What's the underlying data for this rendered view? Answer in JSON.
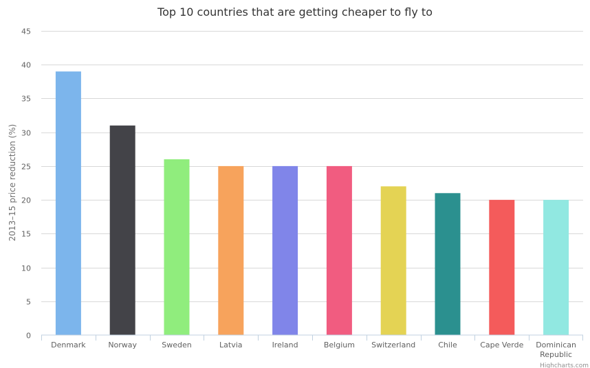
{
  "chart_data": {
    "type": "bar",
    "title": "Top 10 countries that are getting cheaper to fly to",
    "xlabel": "",
    "ylabel": "2013–15 price reduction (%)",
    "ylim": [
      0,
      45
    ],
    "yticks": [
      0,
      5,
      10,
      15,
      20,
      25,
      30,
      35,
      40,
      45
    ],
    "grid": true,
    "legend": "none",
    "categories": [
      "Denmark",
      "Norway",
      "Sweden",
      "Latvia",
      "Ireland",
      "Belgium",
      "Switzerland",
      "Chile",
      "Cape Verde",
      "Dominican Republic"
    ],
    "category_lines": [
      [
        "Denmark"
      ],
      [
        "Norway"
      ],
      [
        "Sweden"
      ],
      [
        "Latvia"
      ],
      [
        "Ireland"
      ],
      [
        "Belgium"
      ],
      [
        "Switzerland"
      ],
      [
        "Chile"
      ],
      [
        "Cape Verde"
      ],
      [
        "Dominican",
        "Republic"
      ]
    ],
    "values": [
      39,
      31,
      26,
      25,
      25,
      25,
      22,
      21,
      20,
      20
    ],
    "colors": [
      "#7cb5ec",
      "#434348",
      "#90ed7d",
      "#f7a35c",
      "#8085e9",
      "#f15c80",
      "#e4d354",
      "#2b908f",
      "#f45b5b",
      "#91e8e1"
    ]
  },
  "credits": "Highcharts.com"
}
